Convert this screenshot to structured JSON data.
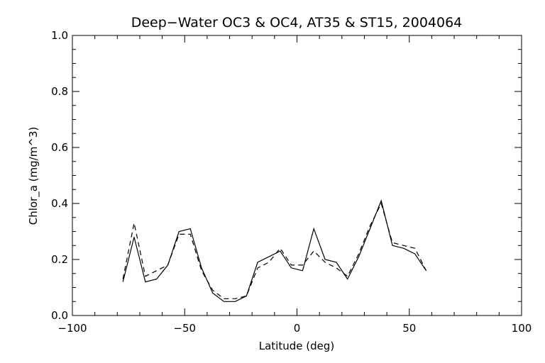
{
  "chart_data": {
    "type": "line",
    "title": "Deep−Water OC3 & OC4, AT35 & ST15, 2004064",
    "xlabel": "Latitude (deg)",
    "ylabel": "Chlor_a (mg/m^3)",
    "xlim": [
      -100,
      100
    ],
    "ylim": [
      0.0,
      1.0
    ],
    "grid": false,
    "x_major_ticks": [
      -100,
      -50,
      0,
      50,
      100
    ],
    "x_tick_labels": [
      "−100",
      "−50",
      "0",
      "50",
      "100"
    ],
    "x_minor_step": 10,
    "y_major_ticks": [
      0.0,
      0.2,
      0.4,
      0.6,
      0.8,
      1.0
    ],
    "y_tick_labels": [
      "0.0",
      "0.2",
      "0.4",
      "0.6",
      "0.8",
      "1.0"
    ],
    "y_minor_step": 0.05,
    "series": [
      {
        "style": "solid",
        "color": "#000000",
        "points": [
          [
            -77.5,
            0.12
          ],
          [
            -72.5,
            0.28
          ],
          [
            -67.5,
            0.12
          ],
          [
            -62.5,
            0.13
          ],
          [
            -57.5,
            0.18
          ],
          [
            -52.5,
            0.3
          ],
          [
            -47.5,
            0.31
          ],
          [
            -42.5,
            0.17
          ],
          [
            -37.5,
            0.08
          ],
          [
            -32.5,
            0.05
          ],
          [
            -27.5,
            0.05
          ],
          [
            -22.5,
            0.07
          ],
          [
            -17.5,
            0.19
          ],
          [
            -12.5,
            0.21
          ],
          [
            -7.5,
            0.23
          ],
          [
            -2.5,
            0.17
          ],
          [
            2.5,
            0.16
          ],
          [
            7.5,
            0.31
          ],
          [
            12.5,
            0.2
          ],
          [
            17.5,
            0.19
          ],
          [
            22.5,
            0.13
          ],
          [
            27.5,
            0.21
          ],
          [
            32.5,
            0.31
          ],
          [
            37.5,
            0.41
          ],
          [
            42.5,
            0.25
          ],
          [
            47.5,
            0.24
          ],
          [
            52.5,
            0.22
          ],
          [
            57.5,
            0.16
          ]
        ]
      },
      {
        "style": "dashed",
        "color": "#000000",
        "points": [
          [
            -77.5,
            0.13
          ],
          [
            -72.5,
            0.33
          ],
          [
            -67.5,
            0.14
          ],
          [
            -62.5,
            0.16
          ],
          [
            -57.5,
            0.18
          ],
          [
            -52.5,
            0.29
          ],
          [
            -47.5,
            0.29
          ],
          [
            -42.5,
            0.16
          ],
          [
            -37.5,
            0.09
          ],
          [
            -32.5,
            0.06
          ],
          [
            -27.5,
            0.06
          ],
          [
            -22.5,
            0.07
          ],
          [
            -17.5,
            0.17
          ],
          [
            -12.5,
            0.19
          ],
          [
            -7.5,
            0.24
          ],
          [
            -2.5,
            0.18
          ],
          [
            2.5,
            0.18
          ],
          [
            7.5,
            0.23
          ],
          [
            12.5,
            0.19
          ],
          [
            17.5,
            0.17
          ],
          [
            22.5,
            0.14
          ],
          [
            27.5,
            0.22
          ],
          [
            32.5,
            0.32
          ],
          [
            37.5,
            0.4
          ],
          [
            42.5,
            0.26
          ],
          [
            47.5,
            0.25
          ],
          [
            52.5,
            0.24
          ],
          [
            57.5,
            0.16
          ]
        ]
      }
    ]
  }
}
